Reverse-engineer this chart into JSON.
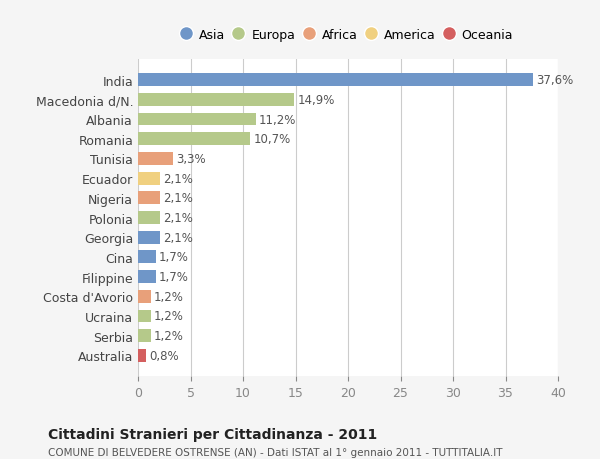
{
  "countries": [
    "India",
    "Macedonia d/N.",
    "Albania",
    "Romania",
    "Tunisia",
    "Ecuador",
    "Nigeria",
    "Polonia",
    "Georgia",
    "Cina",
    "Filippine",
    "Costa d'Avorio",
    "Ucraina",
    "Serbia",
    "Australia"
  ],
  "values": [
    37.6,
    14.9,
    11.2,
    10.7,
    3.3,
    2.1,
    2.1,
    2.1,
    2.1,
    1.7,
    1.7,
    1.2,
    1.2,
    1.2,
    0.8
  ],
  "labels": [
    "37,6%",
    "14,9%",
    "11,2%",
    "10,7%",
    "3,3%",
    "2,1%",
    "2,1%",
    "2,1%",
    "2,1%",
    "1,7%",
    "1,7%",
    "1,2%",
    "1,2%",
    "1,2%",
    "0,8%"
  ],
  "continents": [
    "Asia",
    "Europa",
    "Europa",
    "Europa",
    "Africa",
    "America",
    "Africa",
    "Europa",
    "Asia",
    "Asia",
    "Asia",
    "Africa",
    "Europa",
    "Europa",
    "Oceania"
  ],
  "continent_colors": {
    "Asia": "#6f96c8",
    "Europa": "#b5c98a",
    "Africa": "#e8a07a",
    "America": "#f0d080",
    "Oceania": "#d45f5f"
  },
  "legend_order": [
    "Asia",
    "Europa",
    "Africa",
    "America",
    "Oceania"
  ],
  "title": "Cittadini Stranieri per Cittadinanza - 2011",
  "subtitle": "COMUNE DI BELVEDERE OSTRENSE (AN) - Dati ISTAT al 1° gennaio 2011 - TUTTITALIA.IT",
  "xlim": [
    0,
    40
  ],
  "xticks": [
    0,
    5,
    10,
    15,
    20,
    25,
    30,
    35,
    40
  ],
  "background_color": "#f5f5f5",
  "plot_bg_color": "#ffffff",
  "grid_color": "#cccccc"
}
